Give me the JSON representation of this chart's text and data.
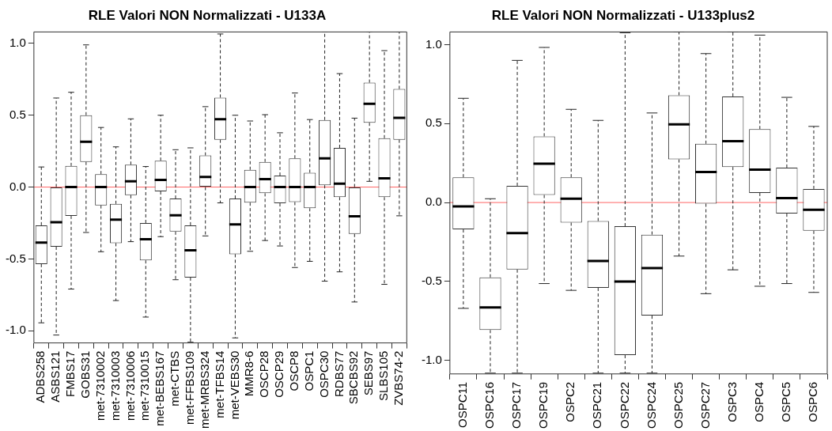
{
  "chart_data": [
    {
      "type": "box",
      "title": "RLE Valori NON Normalizzati - U133A",
      "categories": [
        "ADBS258",
        "ASBS121",
        "FMBS17",
        "GOBS31",
        "met-7310002",
        "met-7310003",
        "met-7310006",
        "met-7310015",
        "met-BEBS167",
        "met-CTBS",
        "met-FFBS109",
        "met-MRBS324",
        "met-TFBS14",
        "met-VEBS30",
        "MMR8-6",
        "OSCP28",
        "OSCP29",
        "OSCP8",
        "OSPC1",
        "OSPC30",
        "RDBS77",
        "SBCBS92",
        "SEBS97",
        "SLBS105",
        "ZVBS74-2"
      ],
      "boxes": [
        {
          "low": -0.945,
          "q1": -0.536,
          "median": -0.387,
          "q3": -0.266,
          "high": 0.14
        },
        {
          "low": -1.03,
          "q1": -0.415,
          "median": -0.245,
          "q3": 0,
          "high": 0.62
        },
        {
          "low": -0.71,
          "q1": -0.2,
          "median": 0,
          "q3": 0.147,
          "high": 0.66
        },
        {
          "low": -0.316,
          "q1": 0.175,
          "median": 0.316,
          "q3": 0.5,
          "high": 0.99
        },
        {
          "low": -0.45,
          "q1": -0.127,
          "median": 0,
          "q3": 0.09,
          "high": 0.415
        },
        {
          "low": -0.79,
          "q1": -0.39,
          "median": -0.227,
          "q3": -0.117,
          "high": 0.28
        },
        {
          "low": -0.38,
          "q1": -0.056,
          "median": 0.04,
          "q3": 0.156,
          "high": 0.475
        },
        {
          "low": -0.905,
          "q1": -0.51,
          "median": -0.363,
          "q3": -0.25,
          "high": 0.143
        },
        {
          "low": -0.345,
          "q1": -0.03,
          "median": 0.05,
          "q3": 0.184,
          "high": 0.5
        },
        {
          "low": -0.645,
          "q1": -0.31,
          "median": -0.197,
          "q3": -0.08,
          "high": 0.26
        },
        {
          "low": -1.08,
          "q1": -0.63,
          "median": -0.44,
          "q3": -0.266,
          "high": 0.273
        },
        {
          "low": -0.34,
          "q1": 0,
          "median": 0.07,
          "q3": 0.22,
          "high": 0.56
        },
        {
          "low": -0.11,
          "q1": 0.33,
          "median": 0.473,
          "q3": 0.623,
          "high": 1.066
        },
        {
          "low": -1.05,
          "q1": -0.467,
          "median": -0.26,
          "q3": -0.08,
          "high": 0.5
        },
        {
          "low": -0.447,
          "q1": -0.108,
          "median": 0,
          "q3": 0.12,
          "high": 0.46
        },
        {
          "low": -0.372,
          "q1": -0.043,
          "median": 0.056,
          "q3": 0.175,
          "high": 0.504
        },
        {
          "low": -0.41,
          "q1": -0.113,
          "median": 0,
          "q3": 0.08,
          "high": 0.378
        },
        {
          "low": -0.56,
          "q1": -0.104,
          "median": 0,
          "q3": 0.2,
          "high": 0.655
        },
        {
          "low": -0.517,
          "q1": -0.147,
          "median": 0,
          "q3": 0.1,
          "high": 0.47
        },
        {
          "low": -0.655,
          "q1": 0.013,
          "median": 0.2,
          "q3": 0.467,
          "high": 1.08
        },
        {
          "low": -0.59,
          "q1": -0.07,
          "median": 0.024,
          "q3": 0.273,
          "high": 0.79
        },
        {
          "low": -0.8,
          "q1": -0.326,
          "median": -0.203,
          "q3": 0,
          "high": 0.48
        },
        {
          "low": 0.04,
          "q1": 0.448,
          "median": 0.58,
          "q3": 0.727,
          "high": 1.08
        },
        {
          "low": -0.677,
          "q1": -0.07,
          "median": 0.061,
          "q3": 0.34,
          "high": 0.95
        },
        {
          "low": -0.2,
          "q1": 0.33,
          "median": 0.482,
          "q3": 0.683,
          "high": 1.08
        }
      ],
      "ylim": [
        -1.085,
        1.08
      ],
      "yticks": [
        {
          "value": -1,
          "label": "-1.0"
        },
        {
          "value": -0.5,
          "label": "-0.5"
        },
        {
          "value": 0,
          "label": "0.0"
        },
        {
          "value": 0.5,
          "label": "0.5"
        },
        {
          "value": 1,
          "label": "1.0"
        }
      ],
      "ref_lines": [
        {
          "axis": "y",
          "value": 0,
          "color": "#ff6666"
        }
      ],
      "grid": false,
      "legend": false
    },
    {
      "type": "box",
      "title": "RLE Valori NON Normalizzati - U133plus2",
      "categories": [
        "OSPC11",
        "OSPC16",
        "OSPC17",
        "OSPC19",
        "OSPC2",
        "OSPC21",
        "OSPC22",
        "OSPC24",
        "OSPC25",
        "OSPC27",
        "OSPC3",
        "OSPC4",
        "OSPC5",
        "OSPC6"
      ],
      "boxes": [
        {
          "low": -0.67,
          "q1": -0.17,
          "median": -0.024,
          "q3": 0.16,
          "high": 0.66
        },
        {
          "low": -1.08,
          "q1": -0.807,
          "median": -0.664,
          "q3": -0.474,
          "high": 0.024
        },
        {
          "low": -1.08,
          "q1": -0.424,
          "median": -0.193,
          "q3": 0.106,
          "high": 0.9
        },
        {
          "low": -0.513,
          "q1": 0.048,
          "median": 0.246,
          "q3": 0.419,
          "high": 0.982
        },
        {
          "low": -0.556,
          "q1": -0.127,
          "median": 0.024,
          "q3": 0.16,
          "high": 0.59
        },
        {
          "low": -1.08,
          "q1": -0.54,
          "median": -0.37,
          "q3": -0.117,
          "high": 0.52
        },
        {
          "low": -1.08,
          "q1": -0.966,
          "median": -0.5,
          "q3": -0.15,
          "high": 1.075
        },
        {
          "low": -1.08,
          "q1": -0.716,
          "median": -0.415,
          "q3": -0.203,
          "high": 0.567
        },
        {
          "low": -0.339,
          "q1": 0.273,
          "median": 0.495,
          "q3": 0.679,
          "high": 1.08
        },
        {
          "low": -0.577,
          "q1": -0.007,
          "median": 0.193,
          "q3": 0.372,
          "high": 0.943
        },
        {
          "low": -0.426,
          "q1": 0.225,
          "median": 0.389,
          "q3": 0.672,
          "high": 1.08
        },
        {
          "low": -0.53,
          "q1": 0.061,
          "median": 0.208,
          "q3": 0.465,
          "high": 1.06
        },
        {
          "low": -0.513,
          "q1": -0.07,
          "median": 0.028,
          "q3": 0.221,
          "high": 0.666
        },
        {
          "low": -0.569,
          "q1": -0.179,
          "median": -0.046,
          "q3": 0.086,
          "high": 0.482
        }
      ],
      "ylim": [
        -1.085,
        1.08
      ],
      "yticks": [
        {
          "value": -1,
          "label": "-1.0"
        },
        {
          "value": -0.5,
          "label": "-0.5"
        },
        {
          "value": 0,
          "label": "0.0"
        },
        {
          "value": 0.5,
          "label": "0.5"
        },
        {
          "value": 1,
          "label": "1.0"
        }
      ],
      "ref_lines": [
        {
          "axis": "y",
          "value": 0,
          "color": "#ff6666"
        }
      ],
      "grid": false,
      "legend": false
    }
  ]
}
